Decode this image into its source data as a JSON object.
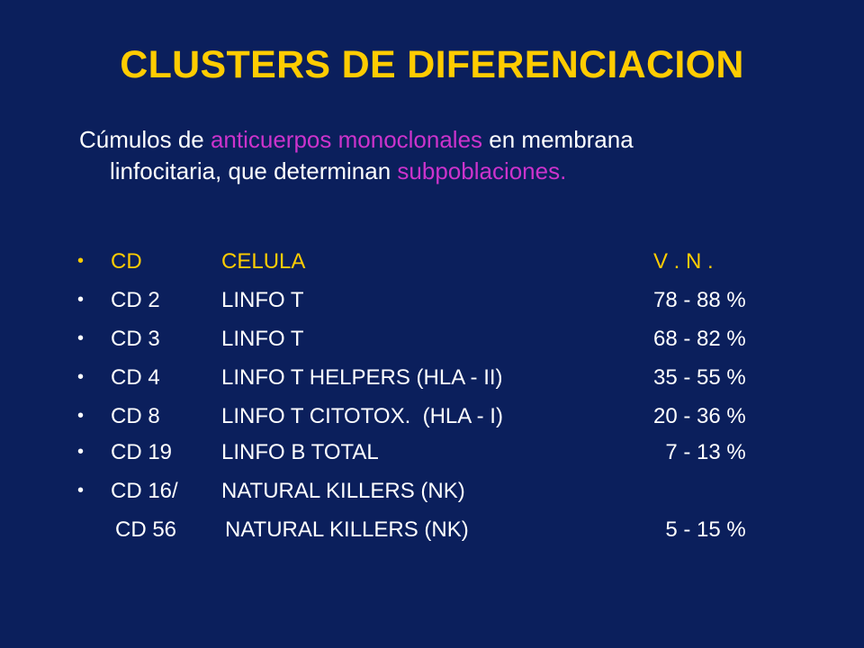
{
  "title": "CLUSTERS DE DIFERENCIACION",
  "intro": {
    "part1": "Cúmulos de ",
    "highlight1": "anticuerpos monoclonales",
    "part2": " en membrana",
    "line2_part1": "linfocitaria, que determinan ",
    "highlight2": "subpoblaciones."
  },
  "bullet_char": "•",
  "table": {
    "header": {
      "cd": "CD",
      "celula": "CELULA",
      "vn": "V . N ."
    },
    "rows": [
      {
        "cd": "CD 2",
        "celula": "LINFO T",
        "vn": "78 - 88 %"
      },
      {
        "cd": "CD 3",
        "celula": "LINFO T",
        "vn": "68 - 82 %"
      },
      {
        "cd": "CD 4",
        "celula": "LINFO T HELPERS (HLA - II)",
        "vn": "35 - 55 %"
      },
      {
        "cd": "CD 8",
        "celula": "LINFO T CITOTOX.  (HLA - I)",
        "vn": "20 - 36 %"
      },
      {
        "cd": "CD 19",
        "celula": "LINFO B TOTAL",
        "vn": "  7 - 13 %"
      },
      {
        "cd": "CD 16/",
        "celula": "NATURAL KILLERS (NK)",
        "vn": ""
      }
    ],
    "continuation": {
      "cd": "CD 56",
      "celula": "NATURAL KILLERS (NK)",
      "vn": "  5 - 15 %"
    }
  },
  "colors": {
    "background": "#0b1f5c",
    "title": "#ffcc00",
    "highlight": "#cc33cc",
    "text": "#ffffff"
  }
}
